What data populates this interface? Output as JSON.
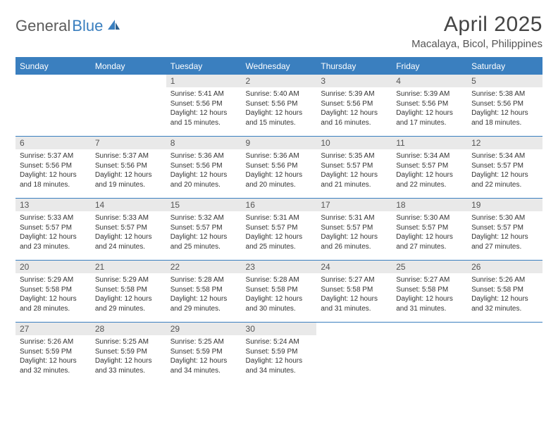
{
  "brand": {
    "part1": "General",
    "part2": "Blue"
  },
  "title": "April 2025",
  "location": "Macalaya, Bicol, Philippines",
  "colors": {
    "accent": "#3a7fbf",
    "header_bg": "#3a7fbf",
    "header_fg": "#ffffff",
    "daynum_bg": "#e9e9e9",
    "text": "#333333"
  },
  "day_headers": [
    "Sunday",
    "Monday",
    "Tuesday",
    "Wednesday",
    "Thursday",
    "Friday",
    "Saturday"
  ],
  "weeks": [
    [
      {
        "n": "",
        "sunrise": "",
        "sunset": "",
        "daylight": "",
        "empty": true
      },
      {
        "n": "",
        "sunrise": "",
        "sunset": "",
        "daylight": "",
        "empty": true
      },
      {
        "n": "1",
        "sunrise": "Sunrise: 5:41 AM",
        "sunset": "Sunset: 5:56 PM",
        "daylight": "Daylight: 12 hours and 15 minutes."
      },
      {
        "n": "2",
        "sunrise": "Sunrise: 5:40 AM",
        "sunset": "Sunset: 5:56 PM",
        "daylight": "Daylight: 12 hours and 15 minutes."
      },
      {
        "n": "3",
        "sunrise": "Sunrise: 5:39 AM",
        "sunset": "Sunset: 5:56 PM",
        "daylight": "Daylight: 12 hours and 16 minutes."
      },
      {
        "n": "4",
        "sunrise": "Sunrise: 5:39 AM",
        "sunset": "Sunset: 5:56 PM",
        "daylight": "Daylight: 12 hours and 17 minutes."
      },
      {
        "n": "5",
        "sunrise": "Sunrise: 5:38 AM",
        "sunset": "Sunset: 5:56 PM",
        "daylight": "Daylight: 12 hours and 18 minutes."
      }
    ],
    [
      {
        "n": "6",
        "sunrise": "Sunrise: 5:37 AM",
        "sunset": "Sunset: 5:56 PM",
        "daylight": "Daylight: 12 hours and 18 minutes."
      },
      {
        "n": "7",
        "sunrise": "Sunrise: 5:37 AM",
        "sunset": "Sunset: 5:56 PM",
        "daylight": "Daylight: 12 hours and 19 minutes."
      },
      {
        "n": "8",
        "sunrise": "Sunrise: 5:36 AM",
        "sunset": "Sunset: 5:56 PM",
        "daylight": "Daylight: 12 hours and 20 minutes."
      },
      {
        "n": "9",
        "sunrise": "Sunrise: 5:36 AM",
        "sunset": "Sunset: 5:56 PM",
        "daylight": "Daylight: 12 hours and 20 minutes."
      },
      {
        "n": "10",
        "sunrise": "Sunrise: 5:35 AM",
        "sunset": "Sunset: 5:57 PM",
        "daylight": "Daylight: 12 hours and 21 minutes."
      },
      {
        "n": "11",
        "sunrise": "Sunrise: 5:34 AM",
        "sunset": "Sunset: 5:57 PM",
        "daylight": "Daylight: 12 hours and 22 minutes."
      },
      {
        "n": "12",
        "sunrise": "Sunrise: 5:34 AM",
        "sunset": "Sunset: 5:57 PM",
        "daylight": "Daylight: 12 hours and 22 minutes."
      }
    ],
    [
      {
        "n": "13",
        "sunrise": "Sunrise: 5:33 AM",
        "sunset": "Sunset: 5:57 PM",
        "daylight": "Daylight: 12 hours and 23 minutes."
      },
      {
        "n": "14",
        "sunrise": "Sunrise: 5:33 AM",
        "sunset": "Sunset: 5:57 PM",
        "daylight": "Daylight: 12 hours and 24 minutes."
      },
      {
        "n": "15",
        "sunrise": "Sunrise: 5:32 AM",
        "sunset": "Sunset: 5:57 PM",
        "daylight": "Daylight: 12 hours and 25 minutes."
      },
      {
        "n": "16",
        "sunrise": "Sunrise: 5:31 AM",
        "sunset": "Sunset: 5:57 PM",
        "daylight": "Daylight: 12 hours and 25 minutes."
      },
      {
        "n": "17",
        "sunrise": "Sunrise: 5:31 AM",
        "sunset": "Sunset: 5:57 PM",
        "daylight": "Daylight: 12 hours and 26 minutes."
      },
      {
        "n": "18",
        "sunrise": "Sunrise: 5:30 AM",
        "sunset": "Sunset: 5:57 PM",
        "daylight": "Daylight: 12 hours and 27 minutes."
      },
      {
        "n": "19",
        "sunrise": "Sunrise: 5:30 AM",
        "sunset": "Sunset: 5:57 PM",
        "daylight": "Daylight: 12 hours and 27 minutes."
      }
    ],
    [
      {
        "n": "20",
        "sunrise": "Sunrise: 5:29 AM",
        "sunset": "Sunset: 5:58 PM",
        "daylight": "Daylight: 12 hours and 28 minutes."
      },
      {
        "n": "21",
        "sunrise": "Sunrise: 5:29 AM",
        "sunset": "Sunset: 5:58 PM",
        "daylight": "Daylight: 12 hours and 29 minutes."
      },
      {
        "n": "22",
        "sunrise": "Sunrise: 5:28 AM",
        "sunset": "Sunset: 5:58 PM",
        "daylight": "Daylight: 12 hours and 29 minutes."
      },
      {
        "n": "23",
        "sunrise": "Sunrise: 5:28 AM",
        "sunset": "Sunset: 5:58 PM",
        "daylight": "Daylight: 12 hours and 30 minutes."
      },
      {
        "n": "24",
        "sunrise": "Sunrise: 5:27 AM",
        "sunset": "Sunset: 5:58 PM",
        "daylight": "Daylight: 12 hours and 31 minutes."
      },
      {
        "n": "25",
        "sunrise": "Sunrise: 5:27 AM",
        "sunset": "Sunset: 5:58 PM",
        "daylight": "Daylight: 12 hours and 31 minutes."
      },
      {
        "n": "26",
        "sunrise": "Sunrise: 5:26 AM",
        "sunset": "Sunset: 5:58 PM",
        "daylight": "Daylight: 12 hours and 32 minutes."
      }
    ],
    [
      {
        "n": "27",
        "sunrise": "Sunrise: 5:26 AM",
        "sunset": "Sunset: 5:59 PM",
        "daylight": "Daylight: 12 hours and 32 minutes."
      },
      {
        "n": "28",
        "sunrise": "Sunrise: 5:25 AM",
        "sunset": "Sunset: 5:59 PM",
        "daylight": "Daylight: 12 hours and 33 minutes."
      },
      {
        "n": "29",
        "sunrise": "Sunrise: 5:25 AM",
        "sunset": "Sunset: 5:59 PM",
        "daylight": "Daylight: 12 hours and 34 minutes."
      },
      {
        "n": "30",
        "sunrise": "Sunrise: 5:24 AM",
        "sunset": "Sunset: 5:59 PM",
        "daylight": "Daylight: 12 hours and 34 minutes."
      },
      {
        "n": "",
        "sunrise": "",
        "sunset": "",
        "daylight": "",
        "empty": true
      },
      {
        "n": "",
        "sunrise": "",
        "sunset": "",
        "daylight": "",
        "empty": true
      },
      {
        "n": "",
        "sunrise": "",
        "sunset": "",
        "daylight": "",
        "empty": true
      }
    ]
  ]
}
